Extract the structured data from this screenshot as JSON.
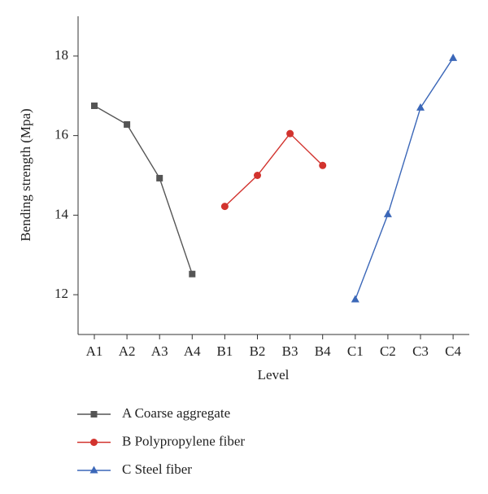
{
  "chart_data": {
    "type": "line",
    "xlabel": "Level",
    "ylabel": "Bending strength (Mpa)",
    "categories": [
      "A1",
      "A2",
      "A3",
      "A4",
      "B1",
      "B2",
      "B3",
      "B4",
      "C1",
      "C2",
      "C3",
      "C4"
    ],
    "series": [
      {
        "name": "A Coarse aggregate",
        "color": "#555555",
        "marker": "square",
        "values": [
          16.75,
          16.28,
          14.93,
          12.52,
          null,
          null,
          null,
          null,
          null,
          null,
          null,
          null
        ]
      },
      {
        "name": "B Polypropylene fiber",
        "color": "#d2332e",
        "marker": "circle",
        "values": [
          null,
          null,
          null,
          null,
          14.22,
          15.0,
          16.05,
          15.25,
          null,
          null,
          null,
          null
        ]
      },
      {
        "name": "C Steel fiber",
        "color": "#3b67b8",
        "marker": "triangle",
        "values": [
          null,
          null,
          null,
          null,
          null,
          null,
          null,
          null,
          11.88,
          14.02,
          16.7,
          17.95
        ]
      }
    ],
    "ylim": [
      11,
      19
    ],
    "yticks": [
      12,
      14,
      16,
      18
    ],
    "grid": false
  }
}
